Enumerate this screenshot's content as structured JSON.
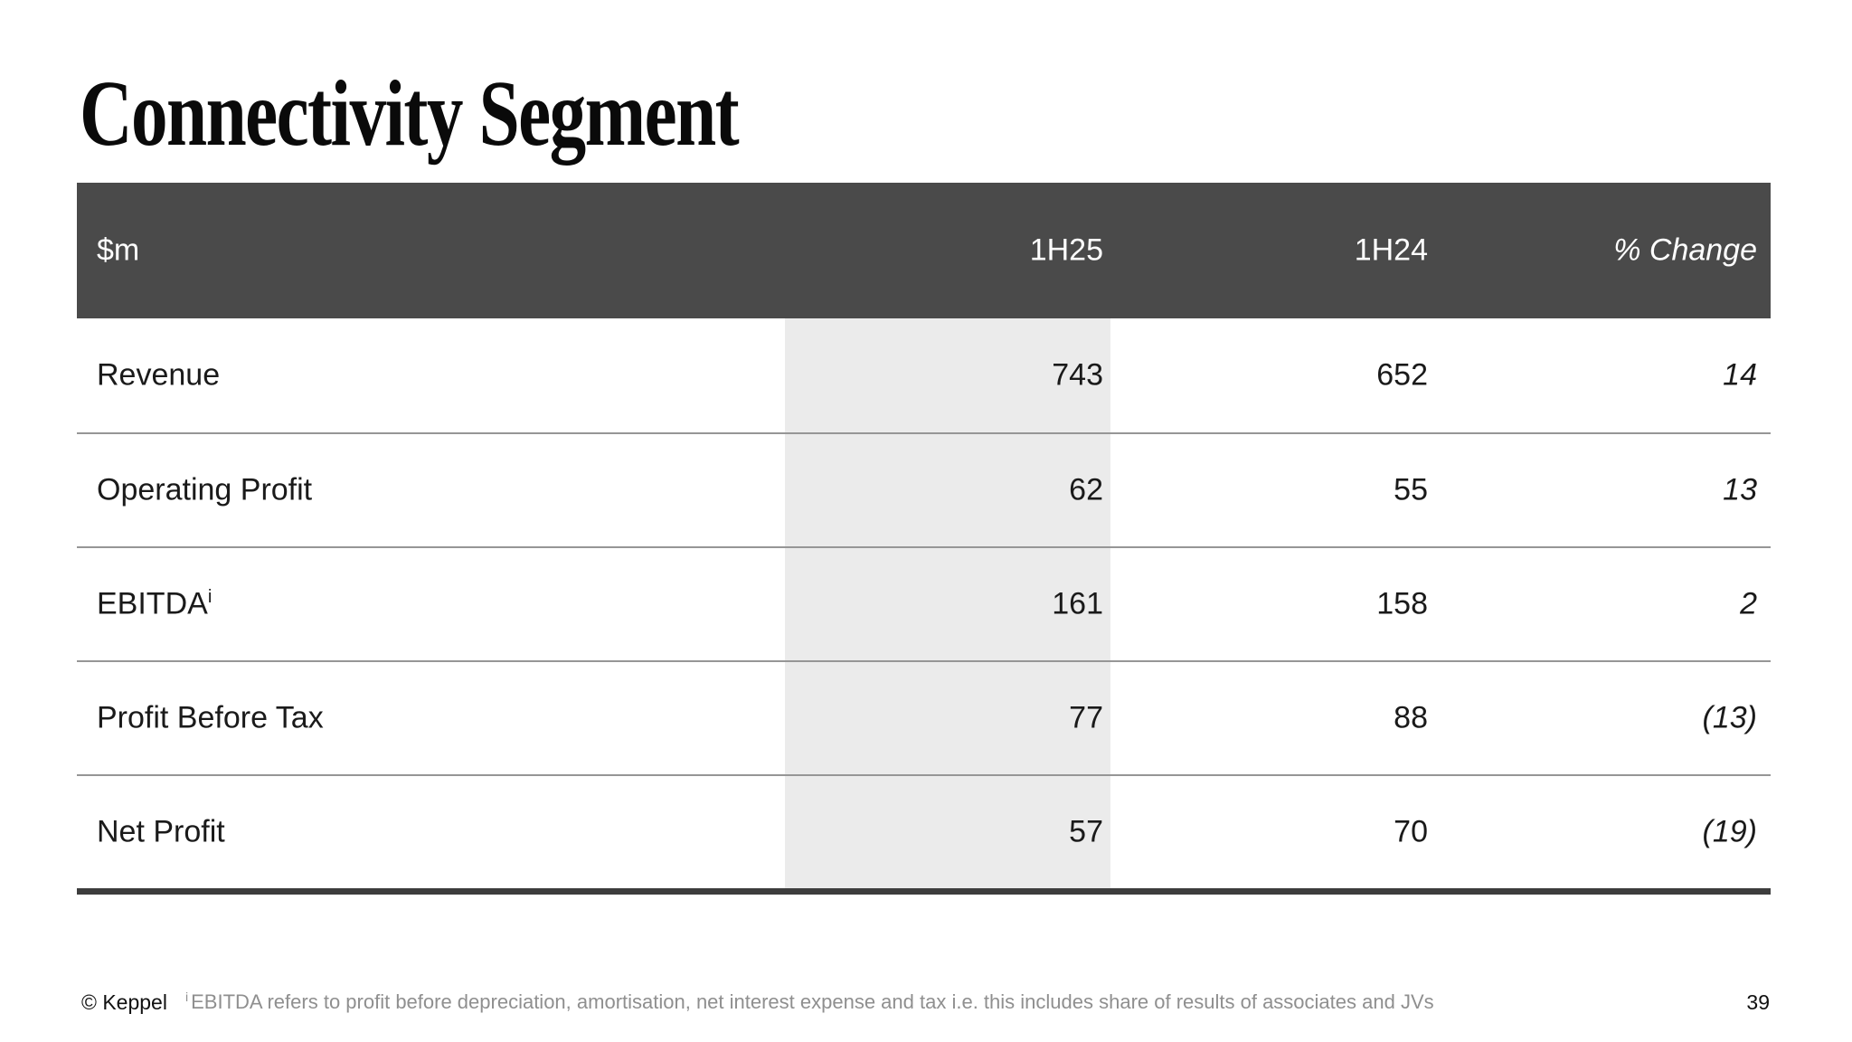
{
  "slide": {
    "title": "Connectivity Segment",
    "page_number": "39"
  },
  "table": {
    "unit_header": "$m",
    "col_1h25": "1H25",
    "col_1h24": "1H24",
    "col_change": "% Change",
    "rows": [
      {
        "label": "Revenue",
        "sup": "",
        "v_1h25": "743",
        "v_1h24": "652",
        "change": "14"
      },
      {
        "label": "Operating Profit",
        "sup": "",
        "v_1h25": "62",
        "v_1h24": "55",
        "change": "13"
      },
      {
        "label": "EBITDA",
        "sup": "i",
        "v_1h25": "161",
        "v_1h24": "158",
        "change": "2"
      },
      {
        "label": "Profit Before Tax",
        "sup": "",
        "v_1h25": "77",
        "v_1h24": "88",
        "change": "(13)"
      },
      {
        "label": "Net Profit",
        "sup": "",
        "v_1h25": "57",
        "v_1h24": "70",
        "change": "(19)"
      }
    ]
  },
  "footer": {
    "copyright": "© Keppel",
    "footnote_sup": "i",
    "footnote_text": "EBITDA refers to profit before depreciation, amortisation, net interest expense and tax i.e. this includes share of results of associates and JVs"
  },
  "colors": {
    "header_bg": "#4A4A4A",
    "header_text": "#FFFFFF",
    "highlight_column_bg": "#EBEBEB",
    "row_divider": "#969696",
    "bottom_border": "#3D3D3D",
    "body_text": "#1A1A1A",
    "footnote_text": "#8F8F8F",
    "background": "#FFFFFF"
  },
  "chart_data": {
    "type": "table",
    "title": "Connectivity Segment ($m)",
    "categories": [
      "Revenue",
      "Operating Profit",
      "EBITDA",
      "Profit Before Tax",
      "Net Profit"
    ],
    "series": [
      {
        "name": "1H25",
        "values": [
          743,
          62,
          161,
          77,
          57
        ]
      },
      {
        "name": "1H24",
        "values": [
          652,
          55,
          158,
          88,
          70
        ]
      },
      {
        "name": "% Change",
        "values": [
          14,
          13,
          2,
          -13,
          -19
        ]
      }
    ]
  }
}
